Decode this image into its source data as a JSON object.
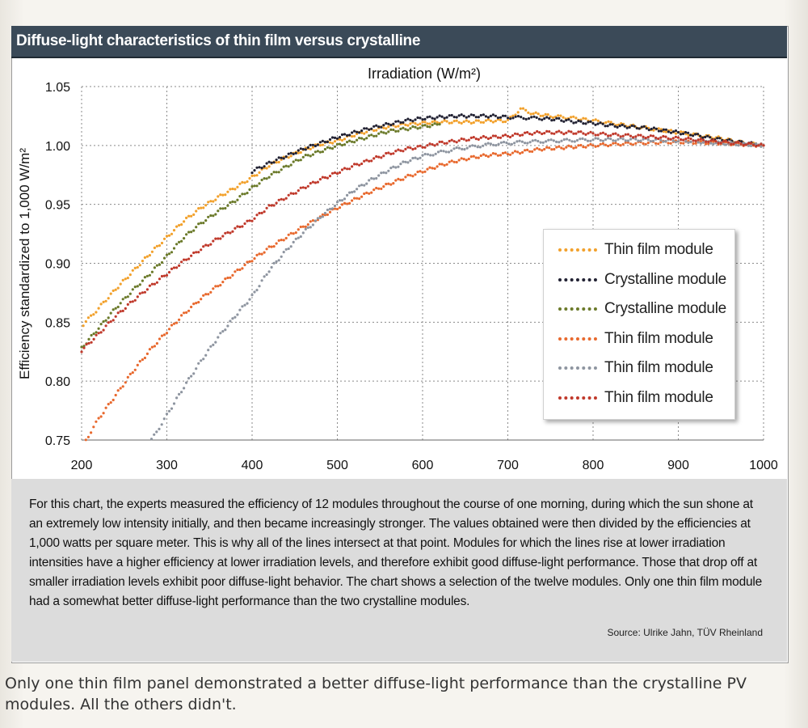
{
  "figure": {
    "title": "Diffuse-light characteristics of thin film versus crystalline",
    "caption": "For this chart, the experts measured the efficiency of 12 modules throughout the course of one morning, during which the sun shone at an extremely low intensity initially, and then became increasingly stronger. The values obtained were then divided by the efficiencies at 1,000 watts per square meter. This is why all of the lines intersect at that point. Modules for which the lines rise at lower irradiation intensities have a higher efficiency at lower irradiation levels, and therefore exhibit good diffuse-light performance. Those that drop off at smaller irradiation levels exhibit poor diffuse-light behavior. The chart shows a selection of the twelve modules. Only one thin film module had a somewhat better diffuse-light performance than the two crystalline modules.",
    "source": "Source: Ulrike Jahn, TÜV Rheinland"
  },
  "footer_text": "Only one thin film panel demonstrated a better diffuse-light performance than the crystalline PV modules. All the others didn't.",
  "chart_data": {
    "type": "scatter",
    "title": "Diffuse-light characteristics of thin film versus crystalline",
    "xlabel": "Irradiation (W/m²)",
    "ylabel": "Efficiency standardized to 1,000 W/m²",
    "xlim": [
      200,
      1000
    ],
    "ylim": [
      0.75,
      1.05
    ],
    "xticks": [
      "200",
      "300",
      "400",
      "500",
      "600",
      "700",
      "800",
      "900",
      "1000"
    ],
    "yticks": [
      "0.75",
      "0.80",
      "0.85",
      "0.90",
      "0.95",
      "1.00",
      "1.05"
    ],
    "grid": true,
    "legend_position": "right",
    "series": [
      {
        "name": "Thin film module",
        "color": "#f2a12c",
        "x": [
          202,
          220,
          240,
          260,
          280,
          300,
          320,
          340,
          360,
          380,
          400,
          420,
          440,
          460,
          480,
          500,
          520,
          540,
          560,
          580,
          600,
          620,
          640,
          660,
          680,
          700,
          715,
          730,
          750,
          780,
          800,
          830,
          850,
          880,
          900,
          930,
          950,
          970,
          1000
        ],
        "y": [
          0.848,
          0.862,
          0.878,
          0.893,
          0.908,
          0.922,
          0.936,
          0.947,
          0.956,
          0.964,
          0.973,
          0.983,
          0.99,
          0.996,
          1.001,
          1.004,
          1.009,
          1.013,
          1.016,
          1.018,
          1.019,
          1.02,
          1.02,
          1.02,
          1.021,
          1.021,
          1.031,
          1.027,
          1.025,
          1.023,
          1.021,
          1.018,
          1.016,
          1.013,
          1.011,
          1.008,
          1.006,
          1.003,
          1.0
        ]
      },
      {
        "name": "Crystalline module",
        "color": "#222233",
        "x": [
          400,
          420,
          440,
          460,
          480,
          500,
          520,
          540,
          560,
          580,
          600,
          620,
          640,
          660,
          680,
          700,
          740,
          760,
          780,
          800,
          820,
          840,
          860,
          880,
          900,
          920,
          940,
          960,
          980,
          1000
        ],
        "y": [
          0.978,
          0.985,
          0.991,
          0.997,
          1.002,
          1.007,
          1.011,
          1.015,
          1.018,
          1.021,
          1.023,
          1.024,
          1.025,
          1.025,
          1.025,
          1.024,
          1.023,
          1.022,
          1.02,
          1.019,
          1.017,
          1.016,
          1.015,
          1.013,
          1.011,
          1.009,
          1.006,
          1.004,
          1.002,
          1.0
        ]
      },
      {
        "name": "Crystalline module",
        "color": "#6b7a2a",
        "x": [
          200,
          220,
          240,
          260,
          280,
          300,
          320,
          340,
          360,
          380,
          400,
          420,
          440,
          460,
          480,
          500,
          520,
          540,
          560,
          580,
          600,
          620
        ],
        "y": [
          0.828,
          0.845,
          0.862,
          0.877,
          0.891,
          0.906,
          0.922,
          0.934,
          0.944,
          0.953,
          0.964,
          0.974,
          0.982,
          0.99,
          0.995,
          1.0,
          1.004,
          1.008,
          1.012,
          1.014,
          1.016,
          1.018
        ]
      },
      {
        "name": "Thin film module",
        "color": "#e8692e",
        "x": [
          205,
          220,
          240,
          260,
          280,
          300,
          320,
          340,
          360,
          380,
          400,
          420,
          440,
          460,
          480,
          500,
          520,
          540,
          560,
          580,
          600,
          620,
          640,
          660,
          680,
          700,
          720,
          740,
          760,
          780,
          800,
          850,
          900,
          950,
          1000
        ],
        "y": [
          0.75,
          0.768,
          0.788,
          0.808,
          0.826,
          0.842,
          0.857,
          0.87,
          0.881,
          0.892,
          0.903,
          0.913,
          0.922,
          0.931,
          0.939,
          0.947,
          0.954,
          0.961,
          0.967,
          0.973,
          0.978,
          0.983,
          0.987,
          0.99,
          0.992,
          0.993,
          0.995,
          0.997,
          0.998,
          0.999,
          1.0,
          1.002,
          1.003,
          1.002,
          1.0
        ]
      },
      {
        "name": "Thin film module",
        "color": "#8e95a0",
        "x": [
          282,
          300,
          320,
          340,
          360,
          380,
          400,
          420,
          440,
          460,
          480,
          500,
          520,
          540,
          560,
          580,
          600,
          640,
          680,
          720,
          760,
          800,
          850,
          900,
          950,
          1000
        ],
        "y": [
          0.75,
          0.771,
          0.795,
          0.817,
          0.837,
          0.855,
          0.872,
          0.894,
          0.911,
          0.926,
          0.939,
          0.951,
          0.962,
          0.971,
          0.979,
          0.986,
          0.991,
          0.997,
          1.001,
          1.003,
          1.004,
          1.005,
          1.005,
          1.004,
          1.002,
          1.0
        ]
      },
      {
        "name": "Thin film module",
        "color": "#c0392b",
        "x": [
          200,
          220,
          240,
          260,
          280,
          300,
          320,
          340,
          360,
          380,
          400,
          420,
          440,
          460,
          480,
          500,
          520,
          540,
          560,
          580,
          600,
          620,
          640,
          660,
          680,
          700,
          720,
          740,
          760,
          780,
          800,
          850,
          900,
          950,
          1000
        ],
        "y": [
          0.826,
          0.84,
          0.855,
          0.868,
          0.88,
          0.891,
          0.902,
          0.912,
          0.921,
          0.929,
          0.937,
          0.948,
          0.956,
          0.964,
          0.971,
          0.977,
          0.983,
          0.988,
          0.993,
          0.997,
          0.999,
          1.002,
          1.004,
          1.006,
          1.007,
          1.008,
          1.01,
          1.011,
          1.011,
          1.011,
          1.01,
          1.008,
          1.006,
          1.003,
          1.0
        ]
      }
    ]
  }
}
